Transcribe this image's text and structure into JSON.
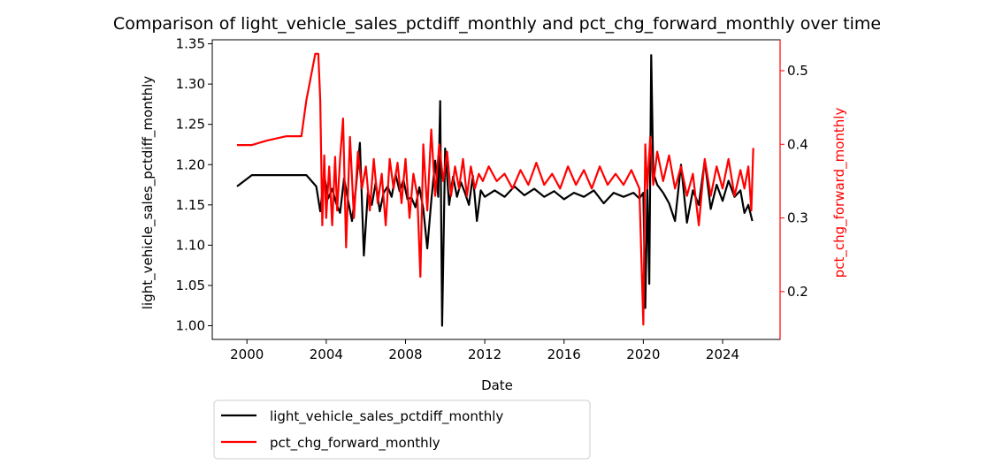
{
  "chart_data": {
    "type": "line",
    "title": "Comparison of light_vehicle_sales_pctdiff_monthly and pct_chg_forward_monthly over time",
    "xlabel": "Date",
    "ylabel_left": "light_vehicle_sales_pctdiff_monthly",
    "ylabel_right": "pct_chg_forward_monthly",
    "xlim": [
      1998.25,
      2026.9
    ],
    "ylim_left": [
      0.983,
      1.355
    ],
    "ylim_right": [
      0.135,
      0.542
    ],
    "x_ticks": [
      2000,
      2004,
      2008,
      2012,
      2016,
      2020,
      2024
    ],
    "x_tick_labels": [
      "2000",
      "2004",
      "2008",
      "2012",
      "2016",
      "2020",
      "2024"
    ],
    "y_ticks_left": [
      1.0,
      1.05,
      1.1,
      1.15,
      1.2,
      1.25,
      1.3,
      1.35
    ],
    "y_tick_labels_left": [
      "1.00",
      "1.05",
      "1.10",
      "1.15",
      "1.20",
      "1.25",
      "1.30",
      "1.35"
    ],
    "y_ticks_right": [
      0.2,
      0.3,
      0.4,
      0.5
    ],
    "y_tick_labels_right": [
      "0.2",
      "0.3",
      "0.4",
      "0.5"
    ],
    "legend": {
      "placement": "below-left",
      "entries": [
        "light_vehicle_sales_pctdiff_monthly",
        "pct_chg_forward_monthly"
      ]
    },
    "colors": {
      "left_series": "#000000",
      "right_series": "#ff0000"
    },
    "grid": false,
    "series": [
      {
        "name": "light_vehicle_sales_pctdiff_monthly",
        "axis": "left",
        "color": "#000000",
        "x": [
          1999.5,
          2000.25,
          2003.0,
          2003.5,
          2003.7,
          2003.9,
          2004.1,
          2004.3,
          2004.5,
          2004.7,
          2004.9,
          2005.1,
          2005.3,
          2005.5,
          2005.7,
          2005.9,
          2006.1,
          2006.3,
          2006.5,
          2006.7,
          2006.9,
          2007.1,
          2007.3,
          2007.5,
          2007.7,
          2007.9,
          2008.1,
          2008.3,
          2008.5,
          2008.7,
          2008.9,
          2009.1,
          2009.3,
          2009.5,
          2009.65,
          2009.75,
          2009.85,
          2010.0,
          2010.2,
          2010.4,
          2010.6,
          2010.8,
          2011.0,
          2011.2,
          2011.4,
          2011.6,
          2011.8,
          2012.0,
          2012.5,
          2013.0,
          2013.5,
          2014.0,
          2014.5,
          2015.0,
          2015.5,
          2016.0,
          2016.5,
          2017.0,
          2017.5,
          2018.0,
          2018.5,
          2019.0,
          2019.5,
          2019.8,
          2020.0,
          2020.1,
          2020.2,
          2020.3,
          2020.4,
          2020.5,
          2020.7,
          2021.0,
          2021.3,
          2021.6,
          2021.9,
          2022.2,
          2022.5,
          2022.8,
          2023.1,
          2023.4,
          2023.7,
          2024.0,
          2024.3,
          2024.6,
          2024.9,
          2025.1,
          2025.3,
          2025.5
        ],
        "values": [
          1.173,
          1.187,
          1.187,
          1.173,
          1.142,
          1.187,
          1.158,
          1.17,
          1.152,
          1.14,
          1.183,
          1.156,
          1.13,
          1.172,
          1.227,
          1.087,
          1.165,
          1.15,
          1.178,
          1.142,
          1.165,
          1.173,
          1.16,
          1.188,
          1.167,
          1.181,
          1.157,
          1.159,
          1.147,
          1.172,
          1.145,
          1.096,
          1.155,
          1.205,
          1.16,
          1.279,
          1.0,
          1.22,
          1.15,
          1.185,
          1.16,
          1.178,
          1.165,
          1.15,
          1.186,
          1.13,
          1.168,
          1.16,
          1.168,
          1.16,
          1.173,
          1.162,
          1.17,
          1.16,
          1.167,
          1.157,
          1.165,
          1.16,
          1.168,
          1.152,
          1.165,
          1.16,
          1.165,
          1.158,
          1.165,
          1.022,
          1.17,
          1.052,
          1.336,
          1.19,
          1.175,
          1.165,
          1.152,
          1.13,
          1.2,
          1.128,
          1.168,
          1.15,
          1.205,
          1.145,
          1.175,
          1.155,
          1.18,
          1.16,
          1.168,
          1.14,
          1.15,
          1.13
        ]
      },
      {
        "name": "pct_chg_forward_monthly",
        "axis": "right",
        "color": "#ff0000",
        "x": [
          1999.5,
          2000.25,
          2001.0,
          2002.0,
          2002.75,
          2003.0,
          2003.45,
          2003.6,
          2003.7,
          2003.8,
          2003.9,
          2004.0,
          2004.15,
          2004.3,
          2004.45,
          2004.55,
          2004.7,
          2004.85,
          2005.0,
          2005.2,
          2005.4,
          2005.6,
          2005.8,
          2006.0,
          2006.2,
          2006.4,
          2006.6,
          2006.8,
          2007.0,
          2007.2,
          2007.4,
          2007.6,
          2007.8,
          2008.0,
          2008.2,
          2008.4,
          2008.6,
          2008.75,
          2008.9,
          2009.1,
          2009.3,
          2009.5,
          2009.7,
          2009.9,
          2010.1,
          2010.3,
          2010.5,
          2010.7,
          2010.9,
          2011.1,
          2011.3,
          2011.5,
          2011.7,
          2011.9,
          2012.2,
          2012.6,
          2013.0,
          2013.4,
          2013.8,
          2014.2,
          2014.6,
          2015.0,
          2015.4,
          2015.8,
          2016.2,
          2016.6,
          2017.0,
          2017.4,
          2017.8,
          2018.2,
          2018.6,
          2019.0,
          2019.4,
          2019.8,
          2020.0,
          2020.1,
          2020.2,
          2020.35,
          2020.5,
          2020.7,
          2021.0,
          2021.3,
          2021.6,
          2021.9,
          2022.2,
          2022.5,
          2022.8,
          2023.1,
          2023.4,
          2023.7,
          2024.0,
          2024.3,
          2024.6,
          2024.9,
          2025.1,
          2025.3,
          2025.45,
          2025.55
        ],
        "values": [
          0.399,
          0.399,
          0.405,
          0.411,
          0.411,
          0.46,
          0.523,
          0.523,
          0.46,
          0.29,
          0.385,
          0.3,
          0.37,
          0.29,
          0.383,
          0.31,
          0.38,
          0.435,
          0.26,
          0.41,
          0.3,
          0.39,
          0.34,
          0.37,
          0.31,
          0.38,
          0.32,
          0.36,
          0.29,
          0.38,
          0.34,
          0.375,
          0.32,
          0.38,
          0.3,
          0.36,
          0.33,
          0.22,
          0.4,
          0.31,
          0.42,
          0.33,
          0.4,
          0.35,
          0.39,
          0.33,
          0.37,
          0.34,
          0.38,
          0.33,
          0.37,
          0.34,
          0.36,
          0.35,
          0.37,
          0.35,
          0.36,
          0.34,
          0.365,
          0.345,
          0.375,
          0.345,
          0.36,
          0.34,
          0.37,
          0.345,
          0.365,
          0.34,
          0.37,
          0.345,
          0.36,
          0.345,
          0.365,
          0.34,
          0.155,
          0.4,
          0.34,
          0.41,
          0.345,
          0.39,
          0.35,
          0.385,
          0.34,
          0.37,
          0.33,
          0.36,
          0.29,
          0.38,
          0.33,
          0.37,
          0.34,
          0.38,
          0.33,
          0.365,
          0.34,
          0.37,
          0.31,
          0.395
        ]
      }
    ]
  }
}
